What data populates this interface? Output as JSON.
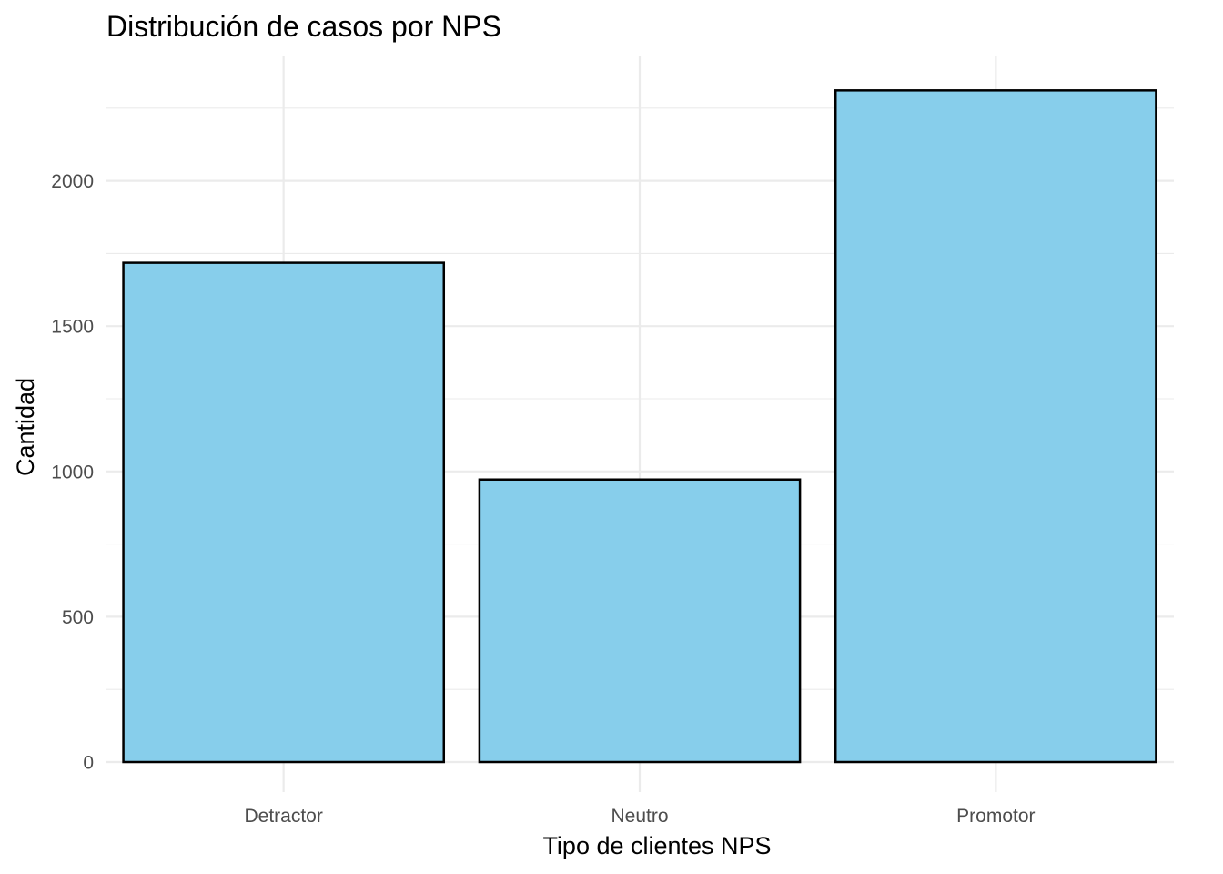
{
  "chart_data": {
    "type": "bar",
    "title": "Distribución de casos por NPS",
    "xlabel": "Tipo de clientes NPS",
    "ylabel": "Cantidad",
    "categories": [
      "Detractor",
      "Neutro",
      "Promotor"
    ],
    "values": [
      1718,
      972,
      2311
    ],
    "ylim": [
      0,
      2420
    ],
    "yticks": [
      0,
      500,
      1000,
      1500,
      2000
    ],
    "yticks_minor": [
      250,
      750,
      1250,
      1750,
      2250
    ],
    "tick_labels": [
      "0",
      "500",
      "1000",
      "1500",
      "2000"
    ],
    "bar_fill": "#87ceeb",
    "bar_stroke": "#000000",
    "grid": true,
    "legend": "none"
  }
}
